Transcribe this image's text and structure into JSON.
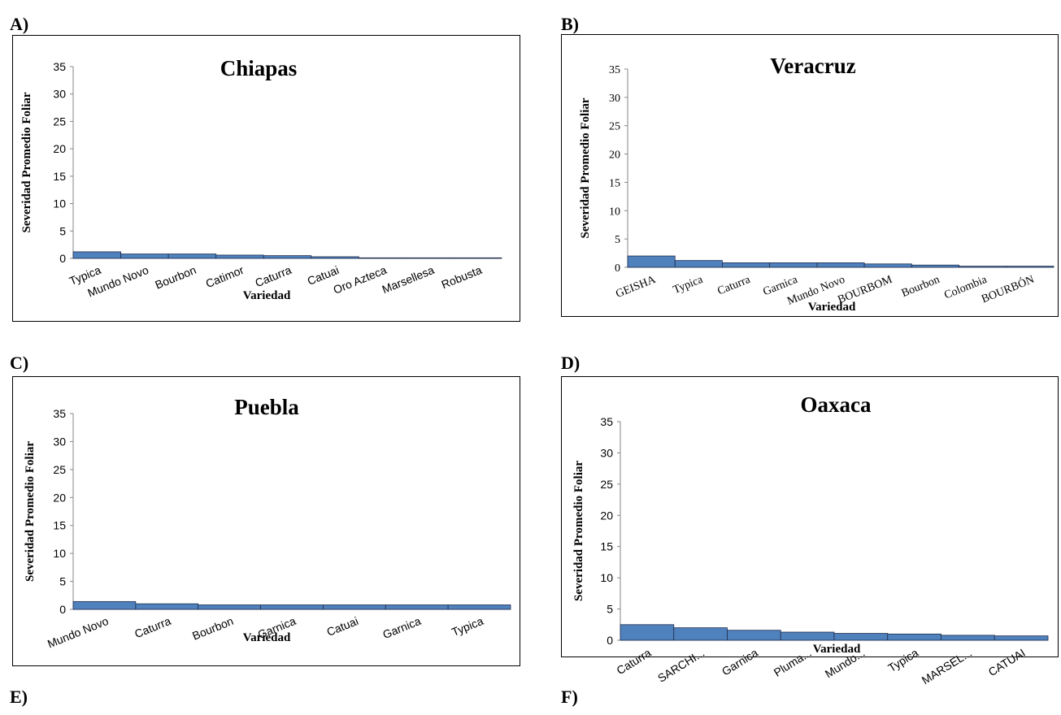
{
  "labels": {
    "a": "A)",
    "b": "B)",
    "c": "C)",
    "d": "D)",
    "e": "E)",
    "f": "F)"
  },
  "colors": {
    "bar": "#4f81bd",
    "bar_edge": "#1f2d4d",
    "axis": "#868686"
  },
  "chart_data": [
    {
      "id": "a",
      "type": "bar",
      "title": "Chiapas",
      "xlabel": "Variedad",
      "ylabel": "Severidad Promedio Foliar",
      "ylim": [
        0,
        35
      ],
      "yticks": [
        0,
        5,
        10,
        15,
        20,
        25,
        30,
        35
      ],
      "categories": [
        "Typica",
        "Mundo Novo",
        "Bourbon",
        "Catimor",
        "Caturra",
        "Catuai",
        "Oro Azteca",
        "Marsellesa",
        "Robusta"
      ],
      "values": [
        1.2,
        0.8,
        0.8,
        0.6,
        0.5,
        0.3,
        0.1,
        0.1,
        0.1
      ],
      "grid": false,
      "legend": "none"
    },
    {
      "id": "b",
      "type": "bar",
      "title": "Veracruz",
      "xlabel": "Variedad",
      "ylabel": "Severidad Promedio Foliar",
      "ylim": [
        0,
        35
      ],
      "yticks": [
        0,
        5,
        10,
        15,
        20,
        25,
        30,
        35
      ],
      "categories": [
        "GEISHA",
        "Typica",
        "Caturra",
        "Garnica",
        "Mundo Novo",
        "BOURBOM",
        "Bourbon",
        "Colombia",
        "BOURBÓN"
      ],
      "values": [
        2.0,
        1.2,
        0.8,
        0.8,
        0.8,
        0.6,
        0.4,
        0.2,
        0.2
      ],
      "grid": false,
      "legend": "none"
    },
    {
      "id": "c",
      "type": "bar",
      "title": "Puebla",
      "xlabel": "Variedad",
      "ylabel": "Severidad Promedio Foliar",
      "ylim": [
        0,
        35
      ],
      "yticks": [
        0,
        5,
        10,
        15,
        20,
        25,
        30,
        35
      ],
      "categories": [
        "Mundo Novo",
        "Caturra",
        "Bourbon",
        "Garnica",
        "Catuai",
        "Garnica",
        "Typica"
      ],
      "values": [
        1.4,
        1.0,
        0.8,
        0.8,
        0.8,
        0.8,
        0.8
      ],
      "grid": false,
      "legend": "none"
    },
    {
      "id": "d",
      "type": "bar",
      "title": "Oaxaca",
      "xlabel": "Variedad",
      "ylabel": "Severidad Promedio Foliar",
      "ylim": [
        0,
        35
      ],
      "yticks": [
        0,
        5,
        10,
        15,
        20,
        25,
        30,
        35
      ],
      "categories": [
        "Caturra",
        "SARCHI...",
        "Garnica",
        "Pluma...",
        "Mundo...",
        "Typica",
        "MARSEL...",
        "CATUAI"
      ],
      "values": [
        2.5,
        2.0,
        1.6,
        1.3,
        1.1,
        1.0,
        0.8,
        0.7
      ],
      "grid": false,
      "legend": "none"
    }
  ]
}
